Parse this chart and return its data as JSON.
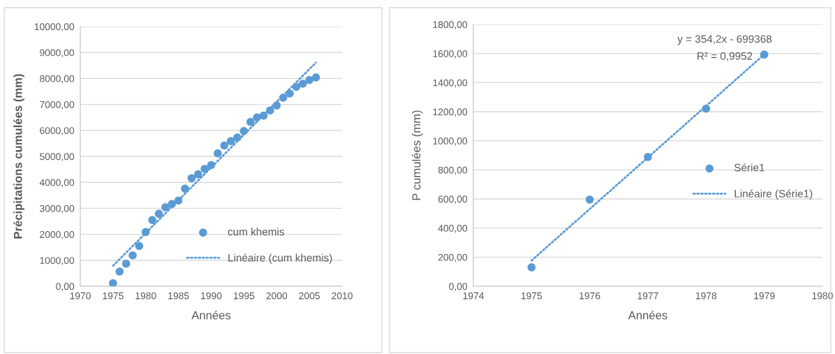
{
  "chart_data": [
    {
      "type": "scatter",
      "xlabel": "Années",
      "ylabel": "Précipitations cumulées (mm)",
      "xlim": [
        1970,
        2010
      ],
      "xticks": [
        1970,
        1975,
        1980,
        1985,
        1990,
        1995,
        2000,
        2005,
        2010
      ],
      "ylim": [
        0,
        10000
      ],
      "yticks": [
        {
          "value": 0,
          "label": "0,00"
        },
        {
          "value": 1000,
          "label": "1000,00"
        },
        {
          "value": 2000,
          "label": "2000,00"
        },
        {
          "value": 3000,
          "label": "3000,00"
        },
        {
          "value": 4000,
          "label": "4000,00"
        },
        {
          "value": 5000,
          "label": "5000,00"
        },
        {
          "value": 6000,
          "label": "6000,00"
        },
        {
          "value": 7000,
          "label": "7000,00"
        },
        {
          "value": 8000,
          "label": "8000,00"
        },
        {
          "value": 9000,
          "label": "9000,00"
        },
        {
          "value": 10000,
          "label": "10000,00"
        }
      ],
      "grid": "y",
      "legend": "bottom right",
      "series": [
        {
          "name": "cum khemis",
          "marker": "circle",
          "color": "#5b9bd5",
          "x": [
            1975,
            1976,
            1977,
            1978,
            1979,
            1980,
            1981,
            1982,
            1983,
            1984,
            1985,
            1986,
            1987,
            1988,
            1989,
            1990,
            1991,
            1992,
            1993,
            1994,
            1995,
            1996,
            1997,
            1998,
            1999,
            2000,
            2001,
            2002,
            2003,
            2004,
            2005,
            2006
          ],
          "values": [
            120,
            570,
            870,
            1190,
            1550,
            2090,
            2550,
            2790,
            3040,
            3170,
            3300,
            3760,
            4160,
            4310,
            4520,
            4670,
            5120,
            5420,
            5590,
            5730,
            5980,
            6330,
            6500,
            6570,
            6770,
            6960,
            7260,
            7420,
            7680,
            7800,
            7940,
            8040
          ]
        },
        {
          "name": "Linéaire (cum khemis)",
          "type": "line",
          "line_style": "dotted",
          "color": "#5b9bd5",
          "x": [
            1975,
            2006
          ],
          "values": [
            790,
            8610
          ]
        }
      ]
    },
    {
      "type": "scatter",
      "xlabel": "Années",
      "ylabel": "P cumulées (mm)",
      "xlim": [
        1974,
        1980
      ],
      "xticks": [
        1974,
        1975,
        1976,
        1977,
        1978,
        1979,
        1980
      ],
      "ylim": [
        0,
        1800
      ],
      "yticks": [
        {
          "value": 0,
          "label": "0,00"
        },
        {
          "value": 200,
          "label": "200,00"
        },
        {
          "value": 400,
          "label": "400,00"
        },
        {
          "value": 600,
          "label": "600,00"
        },
        {
          "value": 800,
          "label": "800,00"
        },
        {
          "value": 1000,
          "label": "1000,00"
        },
        {
          "value": 1200,
          "label": "1200,00"
        },
        {
          "value": 1400,
          "label": "1400,00"
        },
        {
          "value": 1600,
          "label": "1600,00"
        },
        {
          "value": 1800,
          "label": "1800,00"
        }
      ],
      "grid": "y",
      "legend": "right",
      "annotations": [
        "y = 354,2x - 699368",
        "R² = 0,9952"
      ],
      "series": [
        {
          "name": "Série1",
          "marker": "circle",
          "color": "#5b9bd5",
          "x": [
            1975,
            1976,
            1977,
            1978,
            1979
          ],
          "values": [
            130,
            596,
            889,
            1221,
            1593
          ]
        },
        {
          "name": "Linéaire (Série1)",
          "type": "line",
          "line_style": "dotted",
          "color": "#5b9bd5",
          "x": [
            1975,
            1979
          ],
          "values": [
            177,
            1594
          ]
        }
      ]
    }
  ]
}
